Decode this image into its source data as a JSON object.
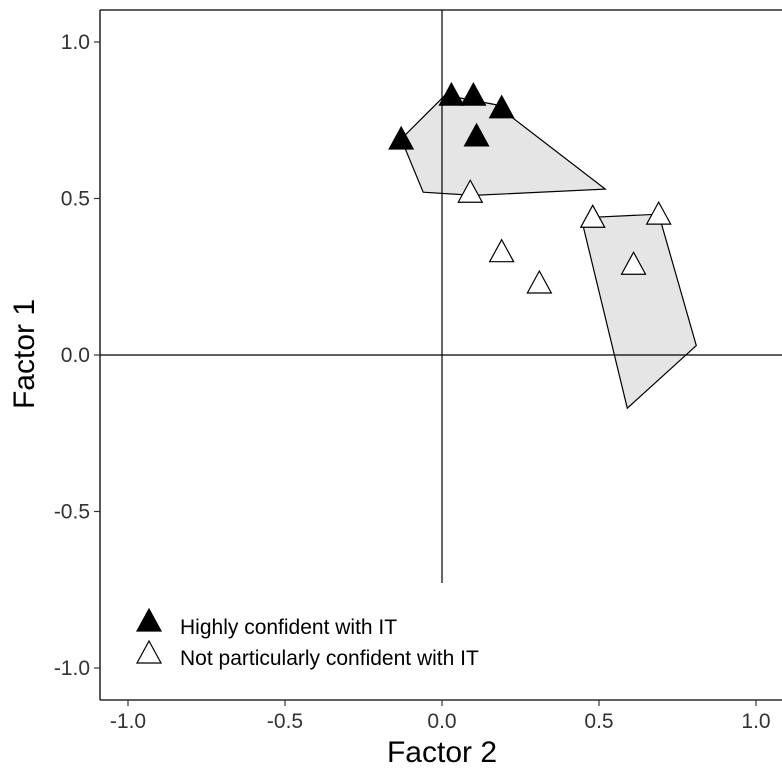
{
  "chart_data": {
    "type": "scatter",
    "title": "",
    "xlabel": "Factor 2",
    "ylabel": "Factor 1",
    "xlim": [
      -1.12,
      1.1
    ],
    "ylim": [
      -1.11,
      1.09
    ],
    "x_ticks": [
      -1.0,
      -0.5,
      0.0,
      0.5,
      1.0
    ],
    "x_tick_labels": [
      "-1.0",
      "-0.5",
      "0.0",
      "0.5",
      "1.0"
    ],
    "y_ticks": [
      -1.0,
      -0.5,
      0.0,
      0.5,
      1.0
    ],
    "y_tick_labels": [
      "-1.0",
      "-0.5",
      "0.0",
      "0.5",
      "1.0"
    ],
    "grid": false,
    "reference_lines": {
      "x": 0,
      "y": 0
    },
    "legend_position": "bottom-left",
    "series": [
      {
        "name": "Highly confident with IT",
        "marker": "filled-triangle",
        "color": "#000000",
        "points": [
          {
            "x": 0.03,
            "y": 0.83
          },
          {
            "x": 0.1,
            "y": 0.83
          },
          {
            "x": 0.19,
            "y": 0.79
          },
          {
            "x": 0.11,
            "y": 0.7
          },
          {
            "x": -0.13,
            "y": 0.69
          }
        ]
      },
      {
        "name": "Not particularly confident with IT",
        "marker": "open-triangle",
        "color": "#ffffff",
        "points": [
          {
            "x": 0.09,
            "y": 0.52
          },
          {
            "x": 0.19,
            "y": 0.33
          },
          {
            "x": 0.31,
            "y": 0.23
          },
          {
            "x": 0.48,
            "y": 0.44
          },
          {
            "x": 0.69,
            "y": 0.45
          },
          {
            "x": 0.61,
            "y": 0.29
          }
        ]
      }
    ],
    "hulls": [
      {
        "fill": "#e5e5e5",
        "points": [
          [
            -0.13,
            0.69
          ],
          [
            0.01,
            0.83
          ],
          [
            0.17,
            0.8
          ],
          [
            0.52,
            0.53
          ],
          [
            0.1,
            0.51
          ],
          [
            -0.06,
            0.52
          ]
        ]
      },
      {
        "fill": "#e5e5e5",
        "points": [
          [
            0.45,
            0.41
          ],
          [
            0.48,
            0.44
          ],
          [
            0.69,
            0.45
          ],
          [
            0.81,
            0.03
          ],
          [
            0.59,
            -0.17
          ]
        ]
      }
    ]
  }
}
